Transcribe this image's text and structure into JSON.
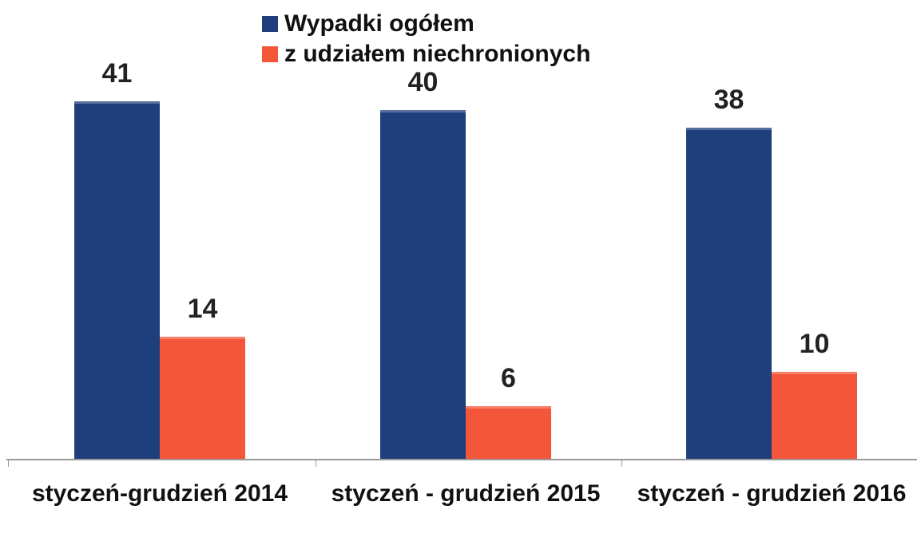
{
  "chart_data": {
    "type": "bar",
    "categories": [
      "styczeń-grudzień 2014",
      "styczeń - grudzień 2015",
      "styczeń - grudzień 2016"
    ],
    "series": [
      {
        "name": "Wypadki ogółem",
        "color": "#1f3f7c",
        "values": [
          41,
          40,
          38
        ]
      },
      {
        "name": "z udziałem niechronionych",
        "color": "#f4563a",
        "values": [
          14,
          6,
          10
        ]
      }
    ],
    "legend": "top"
  }
}
